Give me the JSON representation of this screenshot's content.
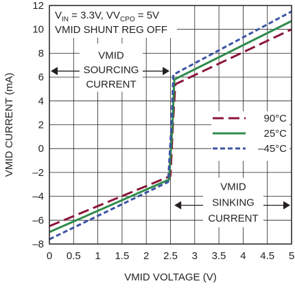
{
  "chart_data": {
    "type": "line",
    "xlabel": "VMID VOLTAGE (V)",
    "ylabel": "VMID CURRENT (mA)",
    "xlim": [
      0,
      5
    ],
    "ylim": [
      -8,
      12
    ],
    "x_ticks": [
      0,
      0.5,
      1,
      1.5,
      2,
      2.5,
      3,
      3.5,
      4,
      4.5,
      5
    ],
    "x_tick_labels": [
      "0",
      "0.5",
      "1",
      "1.5",
      "2",
      "2.5",
      "3",
      "3.5",
      "4",
      "4.5",
      "5"
    ],
    "y_ticks": [
      -8,
      -6,
      -4,
      -2,
      0,
      2,
      4,
      6,
      8,
      10,
      12
    ],
    "y_tick_labels": [
      "–8",
      "–6",
      "–4",
      "–2",
      "0",
      "2",
      "4",
      "6",
      "8",
      "10",
      "12"
    ],
    "grid": true,
    "legend_position": "right",
    "conditions": {
      "vin_text": "V",
      "vin_sub": "IN",
      "vin_rest": " = 3.3V, V",
      "vcpo_sub": "CPO",
      "vcpo_rest": " = 5V",
      "line2": "VMID SHUNT REG OFF"
    },
    "annotations": {
      "sourcing": [
        "VMID",
        "SOURCING",
        "CURRENT"
      ],
      "sinking": [
        "VMID",
        "SINKING",
        "CURRENT"
      ]
    },
    "series": [
      {
        "name": "90°C",
        "color": "#8b1538",
        "dash": "long",
        "x": [
          0,
          2.5,
          2.55,
          2.6,
          5
        ],
        "y": [
          -6.5,
          -2.3,
          2.0,
          5.4,
          10.0
        ]
      },
      {
        "name": "25°C",
        "color": "#2e8b4a",
        "dash": "solid",
        "x": [
          0,
          2.47,
          2.54,
          2.58,
          5
        ],
        "y": [
          -7.0,
          -2.6,
          2.0,
          5.8,
          10.7
        ]
      },
      {
        "name": "–45°C",
        "color": "#3a53a4",
        "dash": "short",
        "x": [
          0,
          2.45,
          2.52,
          2.56,
          5
        ],
        "y": [
          -7.6,
          -2.8,
          2.0,
          6.2,
          11.5
        ]
      }
    ]
  }
}
